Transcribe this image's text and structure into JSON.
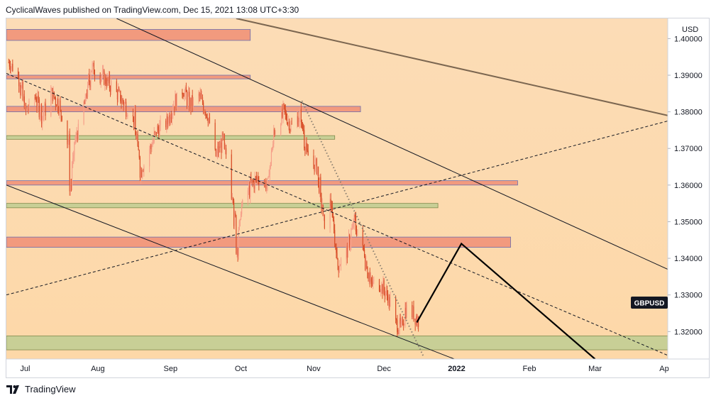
{
  "header": {
    "publisher_line": "CyclicalWaves published on TradingView.com, Dec 15, 2021 13:08 UTC+3:30"
  },
  "footer": {
    "brand": "TradingView"
  },
  "chart_data": {
    "type": "candlestick",
    "symbol": "GBPUSD",
    "currency": "USD",
    "x_tick_labels": [
      "Jul",
      "Aug",
      "Sep",
      "Oct",
      "Nov",
      "Dec",
      "2022",
      "Feb",
      "Mar",
      "Ap"
    ],
    "y_tick_labels": [
      "1.40000",
      "1.39000",
      "1.38000",
      "1.37000",
      "1.36000",
      "1.35000",
      "1.34000",
      "1.33000",
      "1.32000"
    ],
    "ylim": [
      1.3125,
      1.4055
    ],
    "xlim": [
      "2021-06-23",
      "2022-04-01"
    ],
    "last_price_label": "GBPUSD",
    "grid": false,
    "colors": {
      "background": "#fce0bd",
      "up": "#f6a08a",
      "down": "#d9502a",
      "zone_red": "#f29a7e",
      "zone_green": "#c8cf96",
      "line": "#131722",
      "trend_brown": "#7b6650"
    },
    "approx_closes": [
      [
        "2021-06-24",
        1.3935
      ],
      [
        "2021-06-28",
        1.389
      ],
      [
        "2021-07-01",
        1.38
      ],
      [
        "2021-07-05",
        1.384
      ],
      [
        "2021-07-08",
        1.379
      ],
      [
        "2021-07-12",
        1.385
      ],
      [
        "2021-07-15",
        1.382
      ],
      [
        "2021-07-19",
        1.372
      ],
      [
        "2021-07-20",
        1.36
      ],
      [
        "2021-07-22",
        1.372
      ],
      [
        "2021-07-26",
        1.382
      ],
      [
        "2021-07-29",
        1.392
      ],
      [
        "2021-08-02",
        1.39
      ],
      [
        "2021-08-05",
        1.388
      ],
      [
        "2021-08-09",
        1.385
      ],
      [
        "2021-08-12",
        1.382
      ],
      [
        "2021-08-16",
        1.378
      ],
      [
        "2021-08-19",
        1.364
      ],
      [
        "2021-08-23",
        1.37
      ],
      [
        "2021-08-26",
        1.375
      ],
      [
        "2021-08-30",
        1.377
      ],
      [
        "2021-09-02",
        1.382
      ],
      [
        "2021-09-06",
        1.386
      ],
      [
        "2021-09-09",
        1.382
      ],
      [
        "2021-09-13",
        1.384
      ],
      [
        "2021-09-16",
        1.38
      ],
      [
        "2021-09-20",
        1.368
      ],
      [
        "2021-09-23",
        1.372
      ],
      [
        "2021-09-27",
        1.358
      ],
      [
        "2021-09-29",
        1.343
      ],
      [
        "2021-10-01",
        1.354
      ],
      [
        "2021-10-05",
        1.36
      ],
      [
        "2021-10-08",
        1.362
      ],
      [
        "2021-10-12",
        1.36
      ],
      [
        "2021-10-15",
        1.375
      ],
      [
        "2021-10-19",
        1.38
      ],
      [
        "2021-10-22",
        1.376
      ],
      [
        "2021-10-26",
        1.379
      ],
      [
        "2021-10-29",
        1.368
      ],
      [
        "2021-11-02",
        1.365
      ],
      [
        "2021-11-05",
        1.35
      ],
      [
        "2021-11-08",
        1.355
      ],
      [
        "2021-11-11",
        1.338
      ],
      [
        "2021-11-15",
        1.342
      ],
      [
        "2021-11-18",
        1.35
      ],
      [
        "2021-11-22",
        1.342
      ],
      [
        "2021-11-25",
        1.333
      ],
      [
        "2021-11-29",
        1.333
      ],
      [
        "2021-12-02",
        1.33
      ],
      [
        "2021-12-06",
        1.322
      ],
      [
        "2021-12-08",
        1.321
      ],
      [
        "2021-12-10",
        1.326
      ],
      [
        "2021-12-13",
        1.325
      ],
      [
        "2021-12-15",
        1.323
      ]
    ],
    "horizontal_zones": [
      {
        "color": "red",
        "low": 1.3995,
        "high": 1.4025,
        "from": "2021-06-23",
        "to": "2021-10-05"
      },
      {
        "color": "red",
        "low": 1.389,
        "high": 1.39,
        "from": "2021-06-23",
        "to": "2021-10-05"
      },
      {
        "color": "red",
        "low": 1.38,
        "high": 1.3815,
        "from": "2021-06-23",
        "to": "2021-11-21"
      },
      {
        "color": "green",
        "low": 1.3725,
        "high": 1.3735,
        "from": "2021-06-23",
        "to": "2021-11-10"
      },
      {
        "color": "red",
        "low": 1.36,
        "high": 1.3612,
        "from": "2021-06-23",
        "to": "2022-01-27"
      },
      {
        "color": "green",
        "low": 1.3538,
        "high": 1.355,
        "from": "2021-06-23",
        "to": "2021-12-24"
      },
      {
        "color": "red",
        "low": 1.343,
        "high": 1.3458,
        "from": "2021-06-23",
        "to": "2022-01-24"
      },
      {
        "color": "green",
        "low": 1.315,
        "high": 1.3188,
        "from": "2021-06-23",
        "to": "2022-04-01"
      }
    ],
    "trend_lines": [
      {
        "style": "solid",
        "color": "brown",
        "from": [
          "2021-09-29",
          1.4055
        ],
        "to": [
          "2022-04-01",
          1.379
        ]
      },
      {
        "style": "solid",
        "color": "black",
        "from": [
          "2021-08-09",
          1.4055
        ],
        "to": [
          "2022-04-01",
          1.337
        ]
      },
      {
        "style": "solid",
        "color": "black",
        "from": [
          "2021-06-23",
          1.36
        ],
        "to": [
          "2021-12-31",
          1.3125
        ]
      },
      {
        "style": "dashed",
        "color": "black",
        "from": [
          "2021-06-23",
          1.3905
        ],
        "to": [
          "2022-04-01",
          1.3135
        ]
      },
      {
        "style": "dashed",
        "color": "black",
        "from": [
          "2021-06-23",
          1.33
        ],
        "to": [
          "2022-04-01",
          1.3775
        ]
      },
      {
        "style": "dotted",
        "color": "gray",
        "from": [
          "2021-10-27",
          1.383
        ],
        "to": [
          "2021-12-18",
          1.313
        ]
      }
    ],
    "projection_path": [
      [
        "2021-12-15",
        1.3225
      ],
      [
        "2022-01-03",
        1.344
      ],
      [
        "2022-03-01",
        1.3125
      ]
    ]
  }
}
